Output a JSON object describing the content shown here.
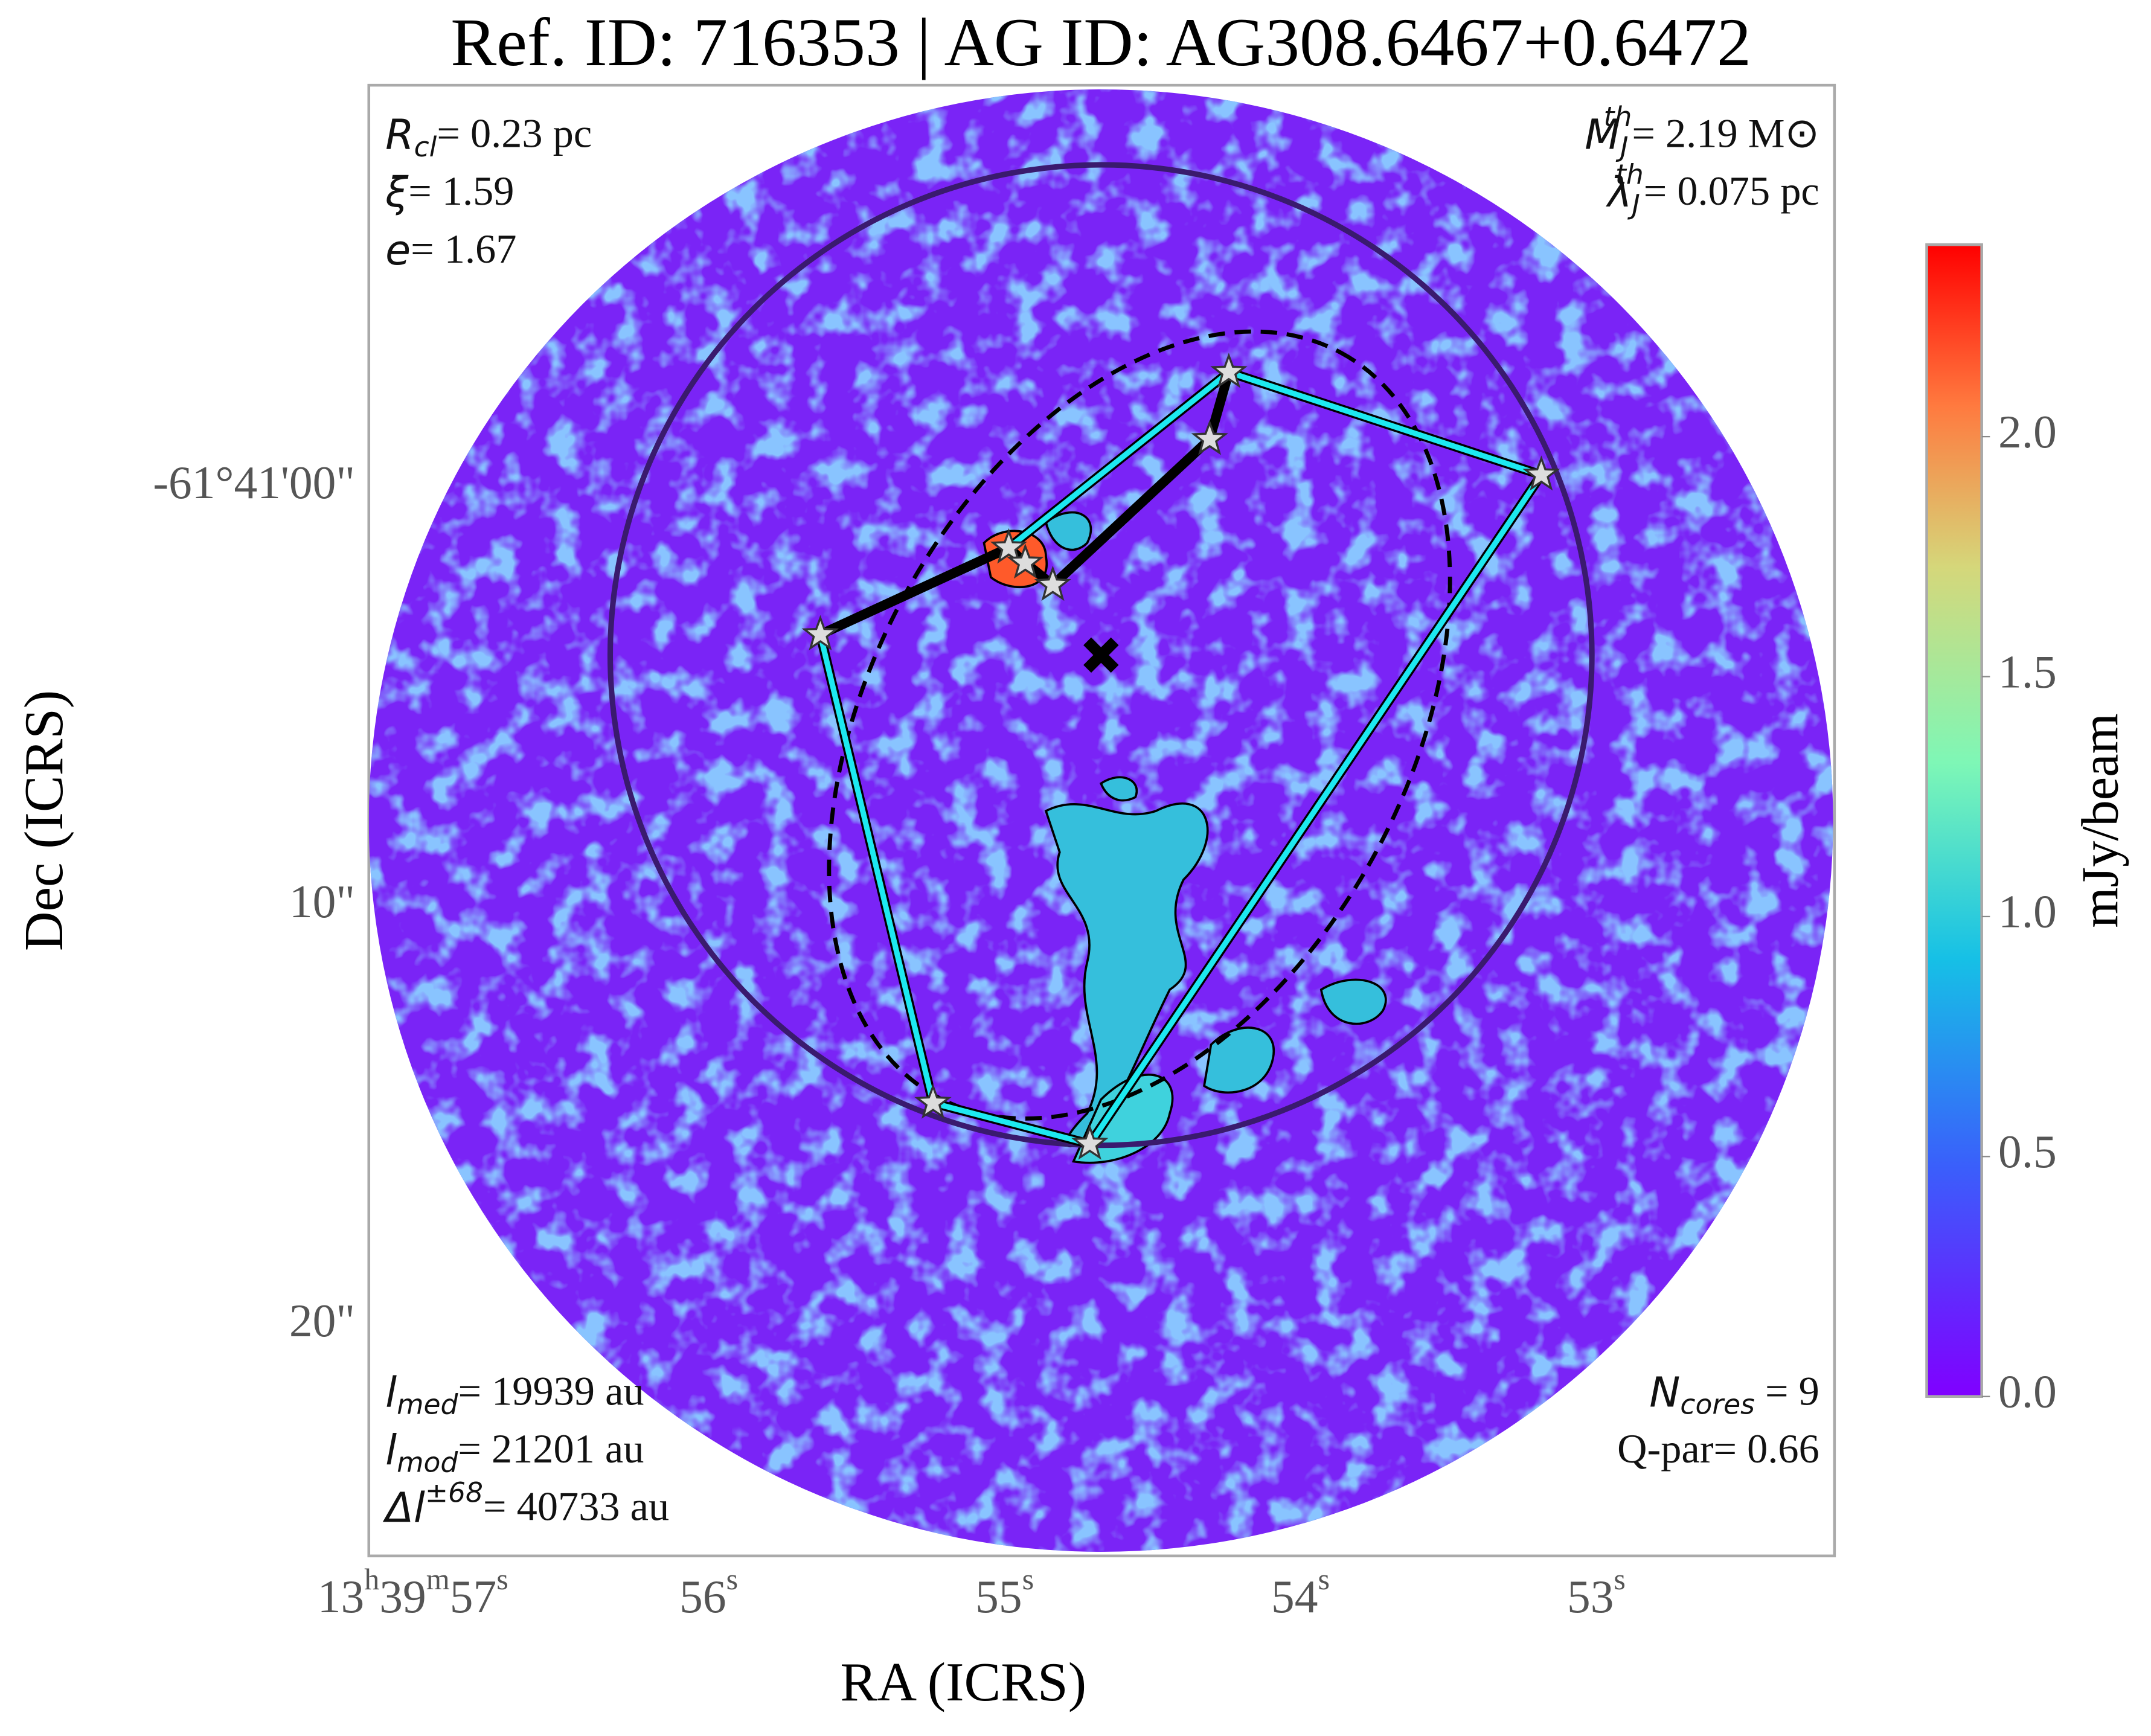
{
  "chart_data": {
    "type": "sky_map",
    "title": "Ref. ID: 716353 | AG ID: AG308.6467+0.6472",
    "xlabel": "RA (ICRS)",
    "ylabel": "Dec (ICRS)",
    "xlim": [
      57.149,
      52.195
    ],
    "ylim": [
      25.5,
      -9.6
    ],
    "xticks": [
      {
        "value": 57,
        "label": "13h39m57s"
      },
      {
        "value": 56,
        "label": "56s"
      },
      {
        "value": 55,
        "label": "55s"
      },
      {
        "value": 54,
        "label": "54s"
      },
      {
        "value": 53,
        "label": "53s"
      }
    ],
    "yticks": [
      {
        "value": 0,
        "label": "-61°41'00\""
      },
      {
        "value": 10,
        "label": "10\""
      },
      {
        "value": 20,
        "label": "20\""
      }
    ],
    "colorbar": {
      "label": "mJy/beam",
      "clim": [
        0,
        2.4
      ],
      "ticks": [
        {
          "value": 0,
          "label": "0.0"
        },
        {
          "value": 0.5,
          "label": "0.5"
        },
        {
          "value": 1,
          "label": "1.0"
        },
        {
          "value": 1.5,
          "label": "1.5"
        },
        {
          "value": 2,
          "label": "2.0"
        }
      ]
    },
    "cores": {
      "ra": [
        54.242,
        54.307,
        53.186,
        54.986,
        54.93,
        54.837,
        55.623,
        55.242,
        54.712
      ],
      "dec": [
        -2.75,
        -1.15,
        -0.3,
        1.44,
        1.8,
        2.33,
        3.51,
        14.69,
        15.67
      ]
    },
    "hull": [
      0,
      2,
      8,
      7,
      6,
      3
    ],
    "mst_edges": [
      [
        6,
        3
      ],
      [
        3,
        4
      ],
      [
        4,
        5
      ],
      [
        5,
        1
      ],
      [
        1,
        0
      ]
    ],
    "center": {
      "ra": 54.674,
      "dec": 4.0,
      "radius": 11.7
    },
    "ellipse": {
      "ra": 54.544,
      "dec": 5.67,
      "a": 10.1,
      "b": 6.4,
      "angle": -61.6
    },
    "annotations": {
      "top_left": [
        {
          "symbol": "R",
          "sub": "cl",
          "text": "= 0.23 pc"
        },
        {
          "symbol": "ξ",
          "text": "= 1.59"
        },
        {
          "symbol": "e",
          "text": "= 1.67"
        }
      ],
      "top_right": [
        {
          "symbol": "M",
          "sub": "J",
          "sup": "th",
          "text": "= 2.19 M⊙"
        },
        {
          "symbol": "λ",
          "sub": "J",
          "sup": "th",
          "text": "= 0.075 pc"
        }
      ],
      "bottom_left": [
        {
          "symbol": "l",
          "sub": "med",
          "text": "= 19939 au"
        },
        {
          "symbol": "l",
          "sub": "mod",
          "text": "= 21201 au"
        },
        {
          "symbol": "Δl",
          "sup": "±68",
          "text": "= 40733 au"
        }
      ],
      "bottom_right": [
        {
          "symbol": "N",
          "sub": "cores",
          "text": " = 9"
        },
        {
          "symbol": "Q-par",
          "text": "= 0.66"
        }
      ]
    }
  }
}
